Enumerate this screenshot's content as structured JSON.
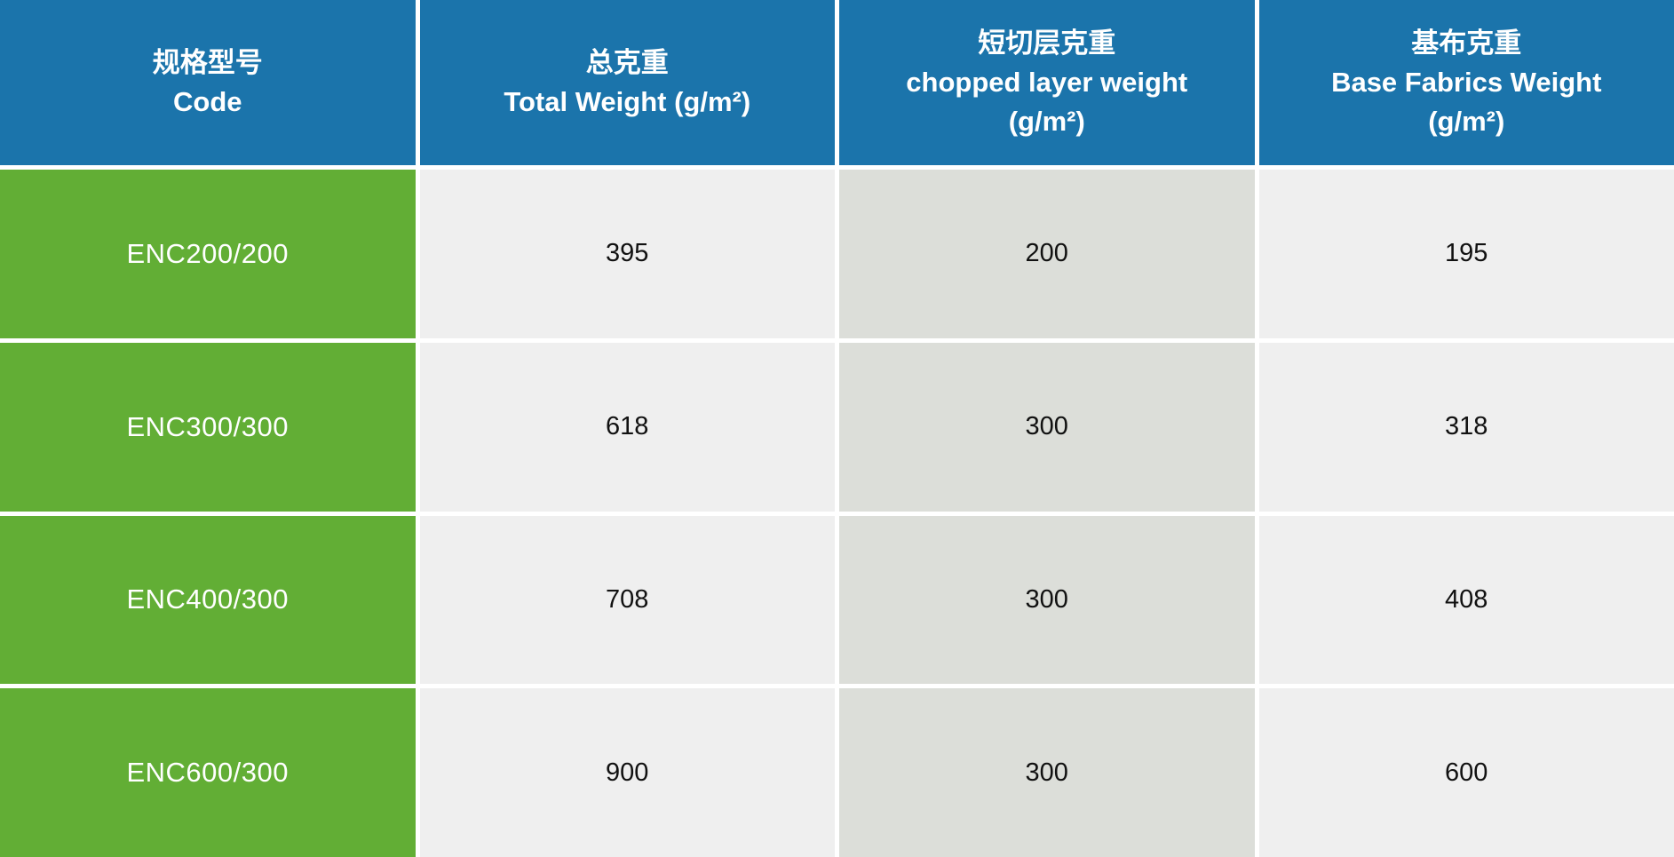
{
  "table": {
    "columns": [
      {
        "zh": "规格型号",
        "en": "Code",
        "unit": ""
      },
      {
        "zh": "总克重",
        "en": "Total Weight (g/m²)",
        "unit": ""
      },
      {
        "zh": "短切层克重",
        "en": "chopped layer weight",
        "unit": "(g/m²)"
      },
      {
        "zh": "基布克重",
        "en": "Base Fabrics Weight",
        "unit": "(g/m²)"
      }
    ],
    "rows": [
      {
        "code": "ENC200/200",
        "total": "395",
        "chopped": "200",
        "base": "195"
      },
      {
        "code": "ENC300/300",
        "total": "618",
        "chopped": "300",
        "base": "318"
      },
      {
        "code": "ENC400/300",
        "total": "708",
        "chopped": "300",
        "base": "408"
      },
      {
        "code": "ENC600/300",
        "total": "900",
        "chopped": "300",
        "base": "600"
      }
    ]
  },
  "colors": {
    "header_blue": "#1b74ab",
    "code_green": "#62ae35",
    "column_light_gray": "#efefef",
    "column_dark_gray": "#dcded9",
    "separator_white": "#ffffff",
    "header_text": "#ffffff",
    "data_text": "#111111"
  }
}
